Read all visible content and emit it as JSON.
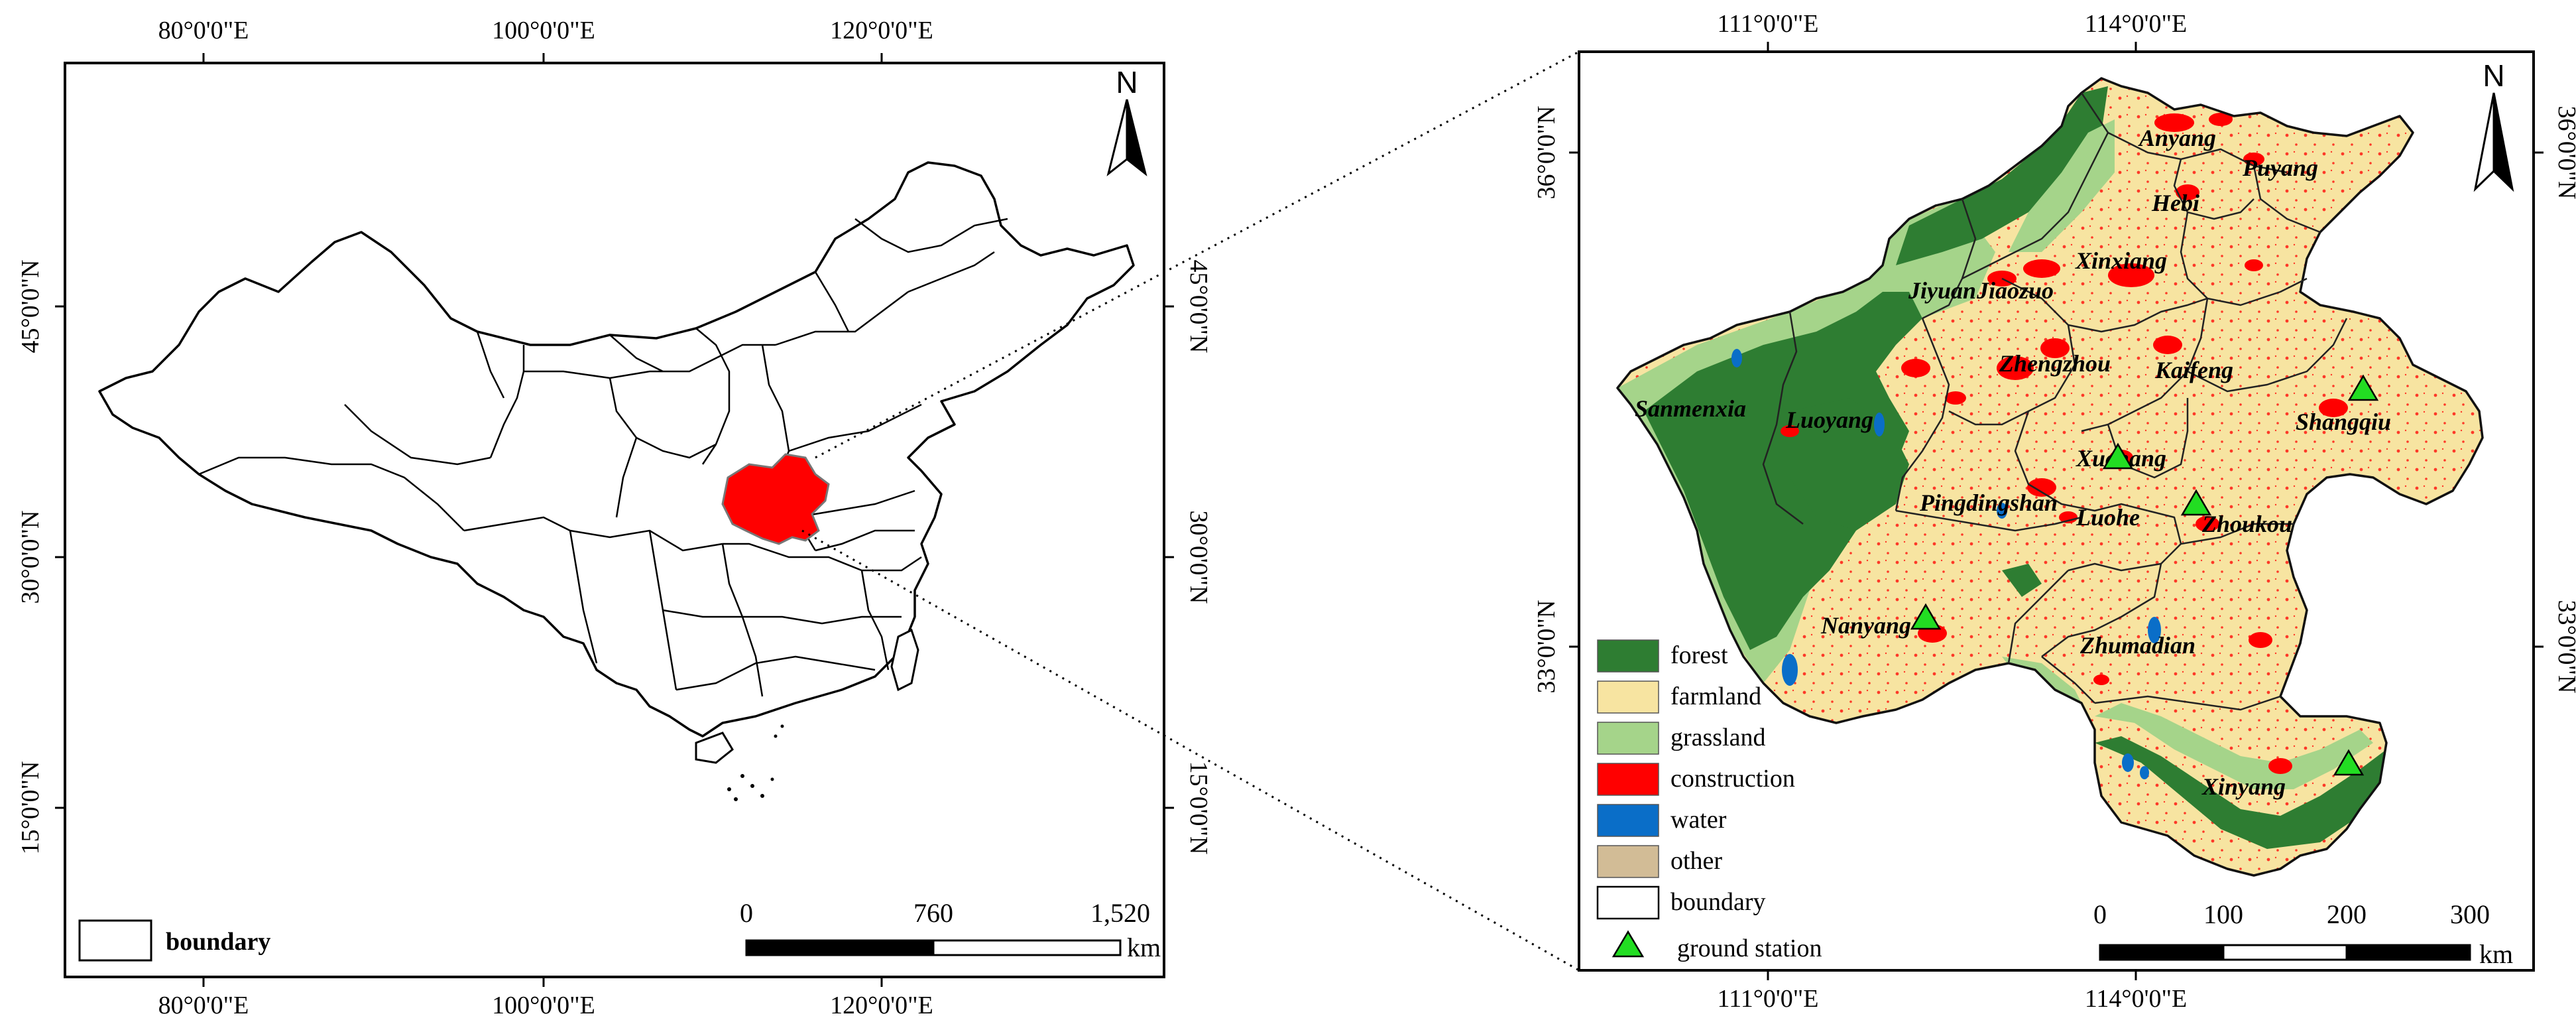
{
  "left_map": {
    "x_ticks_top": [
      "80°0'0\"E",
      "100°0'0\"E",
      "120°0'0\"E"
    ],
    "x_ticks_bottom": [
      "80°0'0\"E",
      "100°0'0\"E",
      "120°0'0\"E"
    ],
    "y_ticks_left": [
      "45°0'0\"N",
      "30°0'0\"N",
      "15°0'0\"N"
    ],
    "y_ticks_right": [
      "45°0'0\"N",
      "30°0'0\"N",
      "15°0'0\"N"
    ],
    "north_label": "N",
    "legend": {
      "label": "boundary"
    },
    "scale": {
      "labels": [
        "0",
        "760",
        "1,520"
      ],
      "unit": "km"
    },
    "highlight_color": "#ff0000"
  },
  "right_map": {
    "x_ticks_top": [
      "111°0'0\"E",
      "114°0'0\"E"
    ],
    "x_ticks_bottom": [
      "111°0'0\"E",
      "114°0'0\"E"
    ],
    "y_ticks_left": [
      "36°0'0\"N",
      "33°0'0\"N"
    ],
    "y_ticks_right": [
      "36°0'0\"N",
      "33°0'0\"N"
    ],
    "north_label": "N",
    "cities": [
      "Anyang",
      "Puyang",
      "Hebi",
      "Xinxiang",
      "Jiyuan",
      "Jiaozuo",
      "Zhengzhou",
      "Kaifeng",
      "Sanmenxia",
      "Luoyang",
      "Shangqiu",
      "Xuchang",
      "Pingdingshan",
      "Luohe",
      "Zhoukou",
      "Nanyang",
      "Zhumadian",
      "Xinyang"
    ],
    "legend": [
      {
        "label": "forest",
        "color": "#2e7d32"
      },
      {
        "label": "farmland",
        "color": "#f7e4a1"
      },
      {
        "label": "grassland",
        "color": "#a5d48a"
      },
      {
        "label": "construction",
        "color": "#ff0000"
      },
      {
        "label": "water",
        "color": "#0a6ec8"
      },
      {
        "label": "other",
        "color": "#d2bc96"
      },
      {
        "label": "boundary",
        "color": "#ffffff"
      },
      {
        "label": "ground station",
        "color": "#22dd22"
      }
    ],
    "scale": {
      "labels": [
        "0",
        "100",
        "200",
        "300"
      ],
      "unit": "km"
    }
  }
}
